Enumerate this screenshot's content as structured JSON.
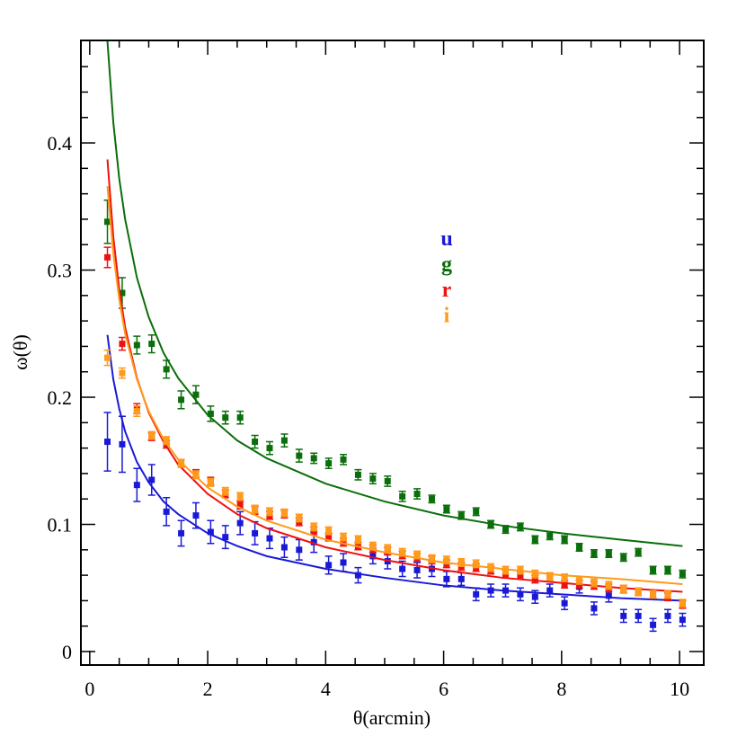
{
  "chart_data": {
    "type": "scatter",
    "xlabel": "θ(arcmin)",
    "ylabel": "ω(θ)",
    "xlim": [
      -0.15,
      10.41
    ],
    "ylim": [
      -0.0106,
      0.4806
    ],
    "xticks": [
      0,
      2,
      4,
      6,
      8,
      10
    ],
    "yticks": [
      0,
      0.1,
      0.2,
      0.3,
      0.4
    ],
    "xminorticks": [
      0.5,
      1,
      1.5,
      2.5,
      3,
      3.5,
      4.5,
      5,
      5.5,
      6.5,
      7,
      7.5,
      8.5,
      9,
      9.5
    ],
    "yminorticks": [
      0.02,
      0.04,
      0.06,
      0.08,
      0.12,
      0.14,
      0.16,
      0.18,
      0.22,
      0.24,
      0.26,
      0.28,
      0.32,
      0.34,
      0.36,
      0.38,
      0.42,
      0.44,
      0.46
    ],
    "x": [
      0.3,
      0.55,
      0.8,
      1.05,
      1.3,
      1.55,
      1.8,
      2.05,
      2.3,
      2.55,
      2.8,
      3.05,
      3.3,
      3.55,
      3.8,
      4.05,
      4.3,
      4.55,
      4.8,
      5.05,
      5.3,
      5.55,
      5.8,
      6.05,
      6.3,
      6.55,
      6.8,
      7.05,
      7.3,
      7.55,
      7.8,
      8.05,
      8.3,
      8.55,
      8.8,
      9.05,
      9.3,
      9.55,
      9.8,
      10.05
    ],
    "fit_x": [
      0.3,
      0.4,
      0.5,
      0.6,
      0.8,
      1,
      1.25,
      1.5,
      2,
      2.5,
      3,
      4,
      5,
      6,
      7,
      8,
      9,
      10.05
    ],
    "series": [
      {
        "name": "u",
        "color": "#1a1ad6",
        "values": [
          0.165,
          0.163,
          0.131,
          0.135,
          0.11,
          0.093,
          0.107,
          0.094,
          0.09,
          0.101,
          0.093,
          0.089,
          0.082,
          0.08,
          0.086,
          0.068,
          0.07,
          0.06,
          0.075,
          0.071,
          0.065,
          0.064,
          0.065,
          0.057,
          0.057,
          0.045,
          0.048,
          0.048,
          0.045,
          0.043,
          0.048,
          0.038,
          0.051,
          0.034,
          0.044,
          0.028,
          0.028,
          0.021,
          0.028,
          0.025
        ],
        "errors": [
          0.023,
          0.022,
          0.013,
          0.012,
          0.011,
          0.01,
          0.01,
          0.009,
          0.009,
          0.009,
          0.009,
          0.008,
          0.008,
          0.008,
          0.008,
          0.007,
          0.007,
          0.006,
          0.006,
          0.006,
          0.006,
          0.006,
          0.006,
          0.006,
          0.005,
          0.005,
          0.005,
          0.005,
          0.005,
          0.005,
          0.005,
          0.005,
          0.005,
          0.005,
          0.005,
          0.005,
          0.005,
          0.005,
          0.005,
          0.005
        ],
        "fit_values": [
          0.249,
          0.214,
          0.191,
          0.173,
          0.149,
          0.133,
          0.118,
          0.108,
          0.093,
          0.083,
          0.075,
          0.065,
          0.058,
          0.052,
          0.048,
          0.045,
          0.042,
          0.04
        ]
      },
      {
        "name": "g",
        "color": "#0a6e0a",
        "values": [
          0.338,
          0.282,
          0.241,
          0.242,
          0.222,
          0.198,
          0.202,
          0.187,
          0.184,
          0.184,
          0.165,
          0.16,
          0.166,
          0.154,
          0.152,
          0.148,
          0.151,
          0.139,
          0.136,
          0.134,
          0.122,
          0.124,
          0.12,
          0.112,
          0.107,
          0.11,
          0.1,
          0.096,
          0.098,
          0.088,
          0.091,
          0.088,
          0.082,
          0.077,
          0.077,
          0.074,
          0.078,
          0.064,
          0.064,
          0.061
        ],
        "errors": [
          0.017,
          0.012,
          0.007,
          0.007,
          0.007,
          0.007,
          0.007,
          0.006,
          0.005,
          0.005,
          0.005,
          0.005,
          0.005,
          0.005,
          0.004,
          0.004,
          0.004,
          0.004,
          0.004,
          0.004,
          0.004,
          0.004,
          0.003,
          0.003,
          0.003,
          0.003,
          0.003,
          0.003,
          0.003,
          0.003,
          0.003,
          0.003,
          0.003,
          0.003,
          0.003,
          0.003,
          0.003,
          0.003,
          0.003,
          0.003
        ],
        "fit_values": [
          0.48,
          0.416,
          0.372,
          0.34,
          0.294,
          0.263,
          0.235,
          0.215,
          0.186,
          0.166,
          0.152,
          0.132,
          0.118,
          0.107,
          0.099,
          0.093,
          0.088,
          0.083
        ]
      },
      {
        "name": "r",
        "color": "#ee1111",
        "values": [
          0.31,
          0.242,
          0.191,
          0.169,
          0.163,
          0.148,
          0.14,
          0.134,
          0.124,
          0.115,
          0.111,
          0.107,
          0.108,
          0.102,
          0.095,
          0.09,
          0.086,
          0.083,
          0.081,
          0.079,
          0.076,
          0.074,
          0.072,
          0.069,
          0.067,
          0.066,
          0.064,
          0.061,
          0.06,
          0.057,
          0.059,
          0.053,
          0.053,
          0.052,
          0.05,
          0.049,
          0.047,
          0.045,
          0.043,
          0.037
        ],
        "errors": [
          0.008,
          0.005,
          0.004,
          0.003,
          0.003,
          0.003,
          0.003,
          0.003,
          0.003,
          0.003,
          0.003,
          0.003,
          0.003,
          0.003,
          0.003,
          0.003,
          0.003,
          0.003,
          0.003,
          0.003,
          0.003,
          0.003,
          0.003,
          0.003,
          0.003,
          0.003,
          0.003,
          0.003,
          0.003,
          0.003,
          0.003,
          0.003,
          0.003,
          0.003,
          0.003,
          0.003,
          0.003,
          0.003,
          0.003,
          0.003
        ],
        "fit_values": [
          0.387,
          0.326,
          0.285,
          0.255,
          0.215,
          0.188,
          0.165,
          0.147,
          0.124,
          0.108,
          0.097,
          0.082,
          0.072,
          0.064,
          0.058,
          0.054,
          0.05,
          0.047
        ]
      },
      {
        "name": "i",
        "color": "#ff9a1a",
        "values": [
          0.231,
          0.219,
          0.189,
          0.17,
          0.166,
          0.148,
          0.139,
          0.133,
          0.126,
          0.122,
          0.112,
          0.11,
          0.109,
          0.105,
          0.098,
          0.095,
          0.09,
          0.088,
          0.083,
          0.081,
          0.078,
          0.076,
          0.073,
          0.072,
          0.07,
          0.069,
          0.066,
          0.064,
          0.064,
          0.061,
          0.059,
          0.058,
          0.056,
          0.054,
          0.052,
          0.049,
          0.047,
          0.045,
          0.045,
          0.038
        ],
        "errors": [
          0.006,
          0.004,
          0.004,
          0.003,
          0.003,
          0.003,
          0.003,
          0.003,
          0.003,
          0.003,
          0.003,
          0.003,
          0.003,
          0.003,
          0.003,
          0.003,
          0.003,
          0.003,
          0.003,
          0.003,
          0.003,
          0.003,
          0.003,
          0.003,
          0.003,
          0.003,
          0.003,
          0.003,
          0.003,
          0.003,
          0.003,
          0.003,
          0.003,
          0.003,
          0.003,
          0.003,
          0.003,
          0.003,
          0.003,
          0.003
        ],
        "fit_values": [
          0.366,
          0.313,
          0.277,
          0.25,
          0.214,
          0.189,
          0.167,
          0.151,
          0.129,
          0.114,
          0.103,
          0.088,
          0.078,
          0.07,
          0.065,
          0.06,
          0.057,
          0.053
        ]
      }
    ]
  }
}
